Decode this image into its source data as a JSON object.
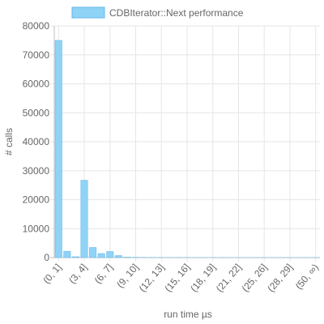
{
  "chart_data": {
    "type": "bar",
    "title": "",
    "xlabel": "run time µs",
    "ylabel": "# calls",
    "ylim": [
      0,
      80000
    ],
    "yticks": [
      0,
      10000,
      20000,
      30000,
      40000,
      50000,
      60000,
      70000,
      80000
    ],
    "grid": true,
    "legend_position": "top",
    "categories": [
      "(0, 1]",
      "(1, 2]",
      "(2, 3]",
      "(3, 4]",
      "(4, 5]",
      "(5, 6]",
      "(6, 7]",
      "(7, 8]",
      "(8, 9]",
      "(9, 10]",
      "(10, 11]",
      "(11, 12]",
      "(12, 13]",
      "(13, 14]",
      "(14, 15]",
      "(15, 16]",
      "(16, 17]",
      "(17, 18]",
      "(18, 19]",
      "(19, 20]",
      "(20, 21]",
      "(21, 22]",
      "(22, 23]",
      "(23, 24]",
      "(25, 26]",
      "(26, 27]",
      "(27, 28]",
      "(28, 29]",
      "(29, 30]",
      "(30, 50]",
      "(50, ∞)"
    ],
    "x_tick_labels_shown": [
      "(0, 1]",
      "(3, 4]",
      "(6, 7]",
      "(9, 10]",
      "(12, 13]",
      "(15, 16]",
      "(18, 19]",
      "(21, 22]",
      "(25, 26]",
      "(28, 29]",
      "(50, ∞)"
    ],
    "series": [
      {
        "name": "CDBIterator::Next performance",
        "color": "#8fd3f7",
        "border_color": "#64b5e8",
        "values": [
          75000,
          2200,
          300,
          26700,
          3500,
          1400,
          2100,
          700,
          150,
          100,
          60,
          40,
          30,
          25,
          20,
          15,
          12,
          10,
          8,
          6,
          5,
          4,
          3,
          3,
          3,
          2,
          2,
          2,
          2,
          2,
          1
        ]
      }
    ]
  }
}
